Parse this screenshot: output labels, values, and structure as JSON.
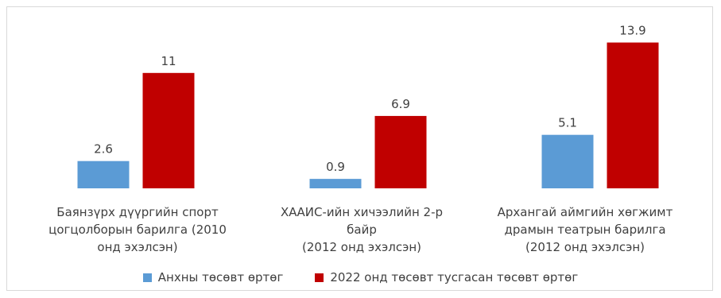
{
  "chart_data": {
    "type": "bar",
    "categories": [
      "Баянзүрх дүүргийн спорт\nцогцолборын барилга (2010\nонд эхэлсэн)",
      "ХААИС-ийн хичээлийн 2-р\nбайр\n(2012 онд эхэлсэн)",
      "Архангай аймгийн хөгжимт\nдрамын театрын барилга\n(2012 онд эхэлсэн)"
    ],
    "series": [
      {
        "name": "Анхны төсөвт өртөг",
        "color": "#5b9bd5",
        "values": [
          2.6,
          0.9,
          5.1
        ]
      },
      {
        "name": "2022 онд төсөвт тусгасан төсөвт өртөг",
        "color": "#c00000",
        "values": [
          11,
          6.9,
          13.9
        ]
      }
    ],
    "value_labels": [
      [
        "2.6",
        "0.9",
        "5.1"
      ],
      [
        "11",
        "6.9",
        "13.9"
      ]
    ],
    "ylim": [
      0,
      15
    ],
    "legend_position": "bottom",
    "grid": false
  }
}
